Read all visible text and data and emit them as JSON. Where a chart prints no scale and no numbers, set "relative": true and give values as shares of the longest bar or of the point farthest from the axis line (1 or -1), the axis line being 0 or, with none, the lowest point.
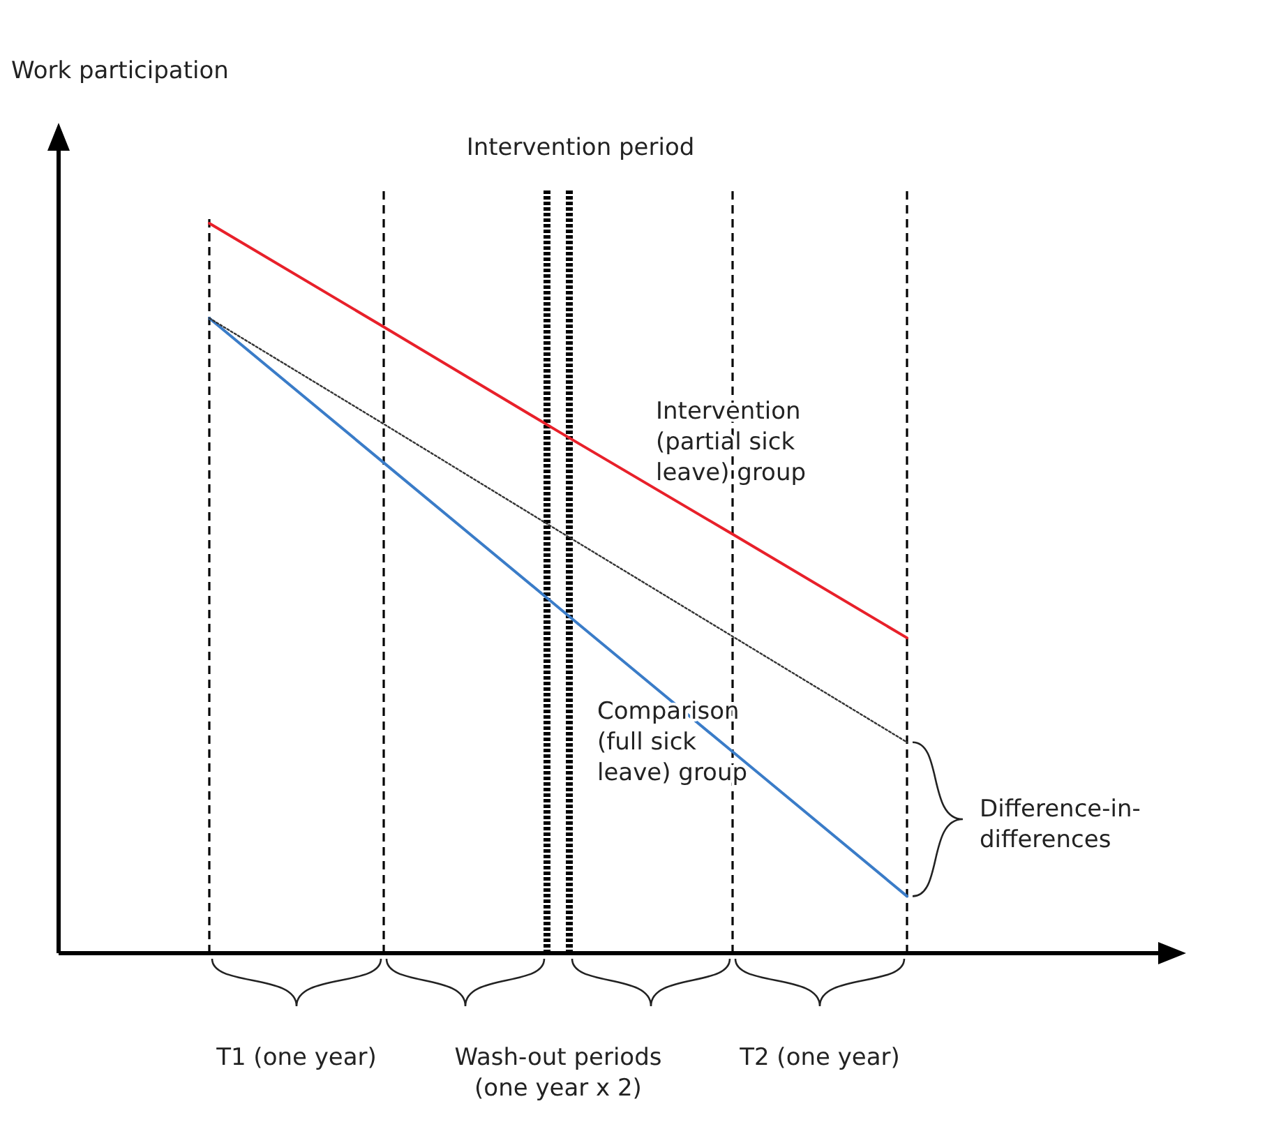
{
  "chart_data": {
    "type": "line",
    "title": "Intervention period",
    "relative": true,
    "categories": [
      null,
      null,
      null,
      null,
      null
    ],
    "series": [
      {
        "name": "Intervention (partial sick leave) group",
        "color": "#e8202a",
        "values": [
          1,
          0.858,
          0.715,
          0.574,
          0.432
        ],
        "line_style": "solid"
      },
      {
        "name": "Comparison (full sick leave) group",
        "color": "#3a7cc8",
        "values": [
          0.87,
          0.672,
          0.474,
          0.276,
          0.078
        ],
        "line_style": "solid"
      },
      {
        "color": "#333333",
        "values": [
          0.87,
          0.725,
          0.579,
          0.434,
          0.289
        ],
        "line_style": "dotted"
      }
    ],
    "grid": "x",
    "annotations": [
      "T1 (one year)",
      "Wash-out periods (one year x 2)",
      "T2 (one year)",
      "Difference-in-differences",
      "Work participation"
    ]
  }
}
